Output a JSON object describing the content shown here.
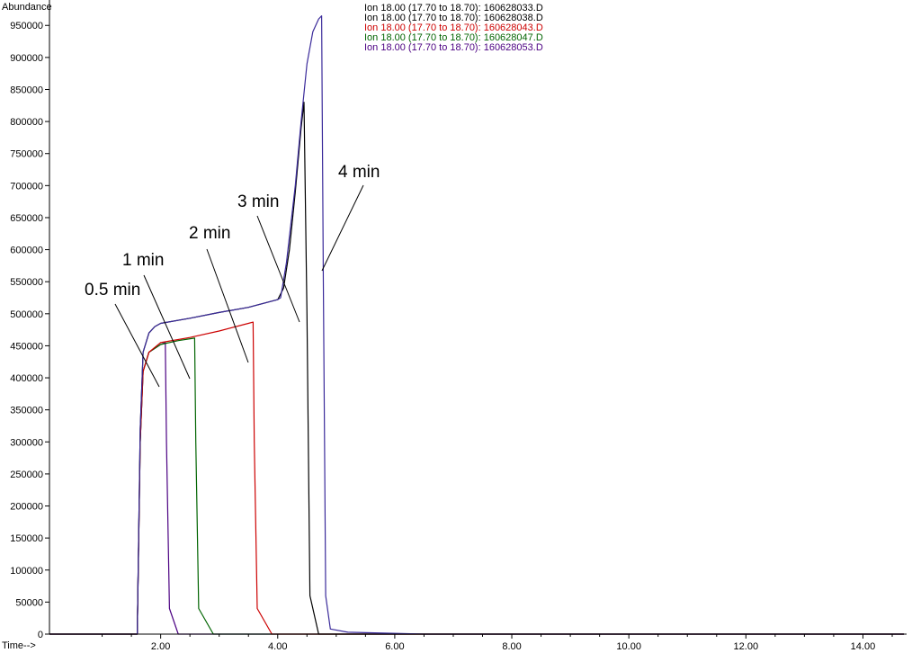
{
  "chart_data": {
    "type": "line",
    "ylabel": "Abundance",
    "xlabel": "Time-->",
    "xlim": [
      0.1,
      14.7
    ],
    "ylim": [
      0,
      970000
    ],
    "x_ticks": [
      "2.00",
      "4.00",
      "6.00",
      "8.00",
      "10.00",
      "12.00",
      "14.00"
    ],
    "y_ticks": [
      "0",
      "50000",
      "100000",
      "150000",
      "200000",
      "250000",
      "300000",
      "350000",
      "400000",
      "450000",
      "500000",
      "550000",
      "600000",
      "650000",
      "700000",
      "750000",
      "800000",
      "850000",
      "900000",
      "950000"
    ],
    "legend": [
      {
        "label": "Ion  18.00 (17.70 to 18.70): 160628033.D",
        "color": "#000000"
      },
      {
        "label": "Ion  18.00 (17.70 to 18.70): 160628038.D",
        "color": "#000000"
      },
      {
        "label": "Ion  18.00 (17.70 to 18.70): 160628043.D",
        "color": "#cc0000"
      },
      {
        "label": "Ion  18.00 (17.70 to 18.70): 160628047.D",
        "color": "#006400"
      },
      {
        "label": "Ion  18.00 (17.70 to 18.70): 160628053.D",
        "color": "#4b0082"
      }
    ],
    "series": [
      {
        "name": "160628053.D",
        "color": "#4b0082",
        "x": [
          0.1,
          1.6,
          1.65,
          1.7,
          1.8,
          2.0,
          2.08,
          2.1,
          2.15,
          2.3,
          14.7
        ],
        "y": [
          0,
          0,
          300000,
          410000,
          440000,
          452000,
          455000,
          300000,
          40000,
          0,
          0
        ]
      },
      {
        "name": "160628047.D",
        "color": "#006400",
        "x": [
          0.1,
          1.6,
          1.65,
          1.7,
          1.8,
          2.0,
          2.3,
          2.58,
          2.6,
          2.65,
          2.9,
          14.7
        ],
        "y": [
          0,
          0,
          300000,
          410000,
          440000,
          452000,
          458000,
          462000,
          300000,
          40000,
          0,
          0
        ]
      },
      {
        "name": "160628043.D",
        "color": "#cc0000",
        "x": [
          0.1,
          1.6,
          1.65,
          1.7,
          1.8,
          2.0,
          2.5,
          3.0,
          3.5,
          3.58,
          3.6,
          3.65,
          3.9,
          14.7
        ],
        "y": [
          0,
          0,
          300000,
          410000,
          440000,
          455000,
          463000,
          473000,
          485000,
          487000,
          300000,
          40000,
          0,
          0
        ]
      },
      {
        "name": "160628038.D",
        "color": "#000000",
        "x": [
          0.1,
          1.6,
          1.65,
          1.7,
          1.8,
          1.9,
          2.0,
          2.5,
          3.0,
          3.5,
          4.0,
          4.1,
          4.2,
          4.3,
          4.4,
          4.45,
          4.5,
          4.55,
          4.7,
          14.7
        ],
        "y": [
          0,
          0,
          320000,
          440000,
          470000,
          480000,
          485000,
          493000,
          502000,
          510000,
          522000,
          540000,
          600000,
          690000,
          790000,
          830000,
          500000,
          60000,
          0,
          0
        ]
      },
      {
        "name": "160628033.D",
        "color": "#3a2a9a",
        "x": [
          0.1,
          1.6,
          1.65,
          1.7,
          1.8,
          1.9,
          2.0,
          2.5,
          3.0,
          3.5,
          4.0,
          4.05,
          4.15,
          4.3,
          4.4,
          4.5,
          4.6,
          4.7,
          4.75,
          4.78,
          4.82,
          4.9,
          5.2,
          6.5,
          14.7
        ],
        "y": [
          0,
          0,
          320000,
          440000,
          470000,
          480000,
          485000,
          493000,
          502000,
          510000,
          522000,
          525000,
          580000,
          700000,
          800000,
          890000,
          940000,
          960000,
          965000,
          550000,
          60000,
          8000,
          3000,
          0,
          0
        ]
      }
    ],
    "annotations": [
      {
        "text": "0.5 min"
      },
      {
        "text": "1 min"
      },
      {
        "text": "2 min"
      },
      {
        "text": "3 min"
      },
      {
        "text": "4 min"
      }
    ]
  }
}
